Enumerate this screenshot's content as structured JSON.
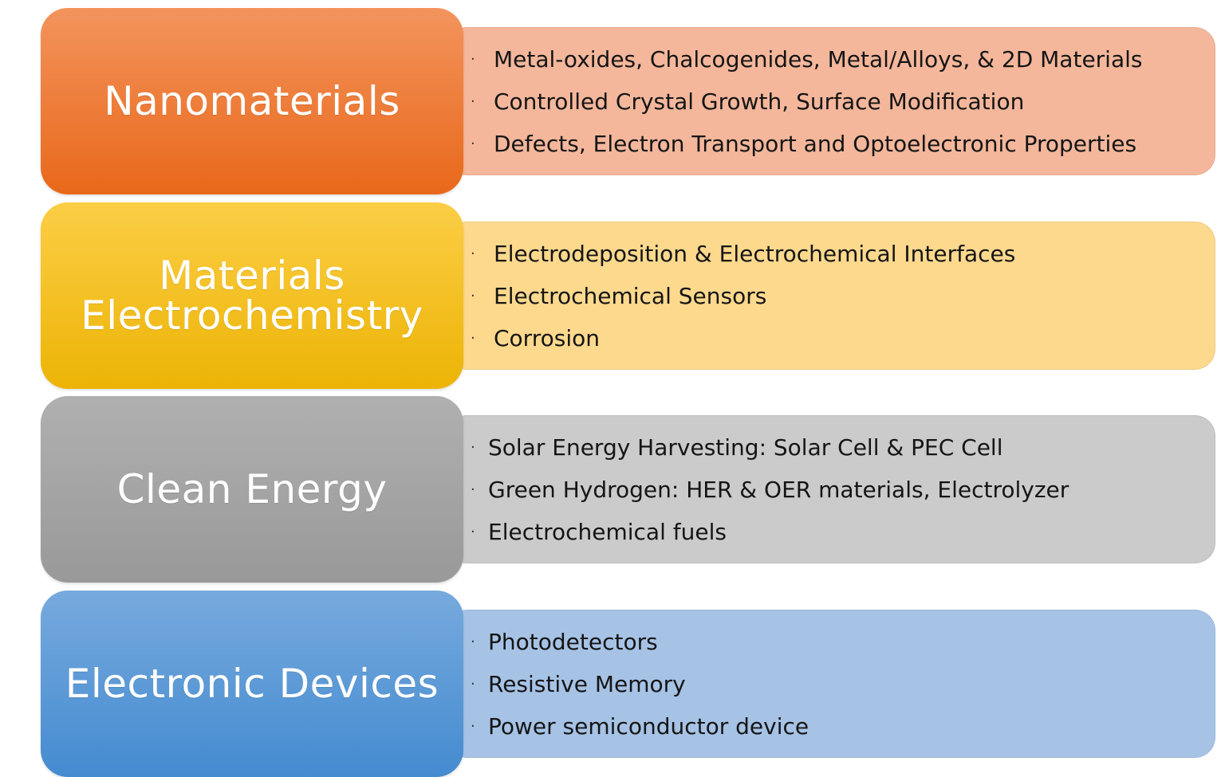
{
  "rows": [
    {
      "title": "Nanomaterials",
      "color": "#ee7d3a",
      "panel_color": "#f4b79b",
      "items": [
        "Metal-oxides, Chalcogenides, Metal/Alloys, & 2D Materials",
        "Controlled Crystal Growth, Surface Modification",
        "Defects, Electron Transport and Optoelectronic Properties"
      ]
    },
    {
      "title": "Materials\nElectrochemistry",
      "color": "#f5c023",
      "panel_color": "#fdd98d",
      "items": [
        "Electrodeposition & Electrochemical Interfaces",
        "Electrochemical Sensors",
        "Corrosion"
      ]
    },
    {
      "title": "Clean Energy",
      "color": "#a5a5a5",
      "panel_color": "#cbcbcb",
      "items": [
        "Solar Energy Harvesting: Solar Cell & PEC Cell",
        "Green Hydrogen: HER & OER materials, Electrolyzer",
        "Electrochemical fuels"
      ]
    },
    {
      "title": "Electronic Devices",
      "color": "#5b9bd5",
      "panel_color": "#a6c3e6",
      "items": [
        "Photodetectors",
        "Resistive Memory",
        "Power semiconductor device"
      ]
    }
  ],
  "bullet_symbol": "·"
}
